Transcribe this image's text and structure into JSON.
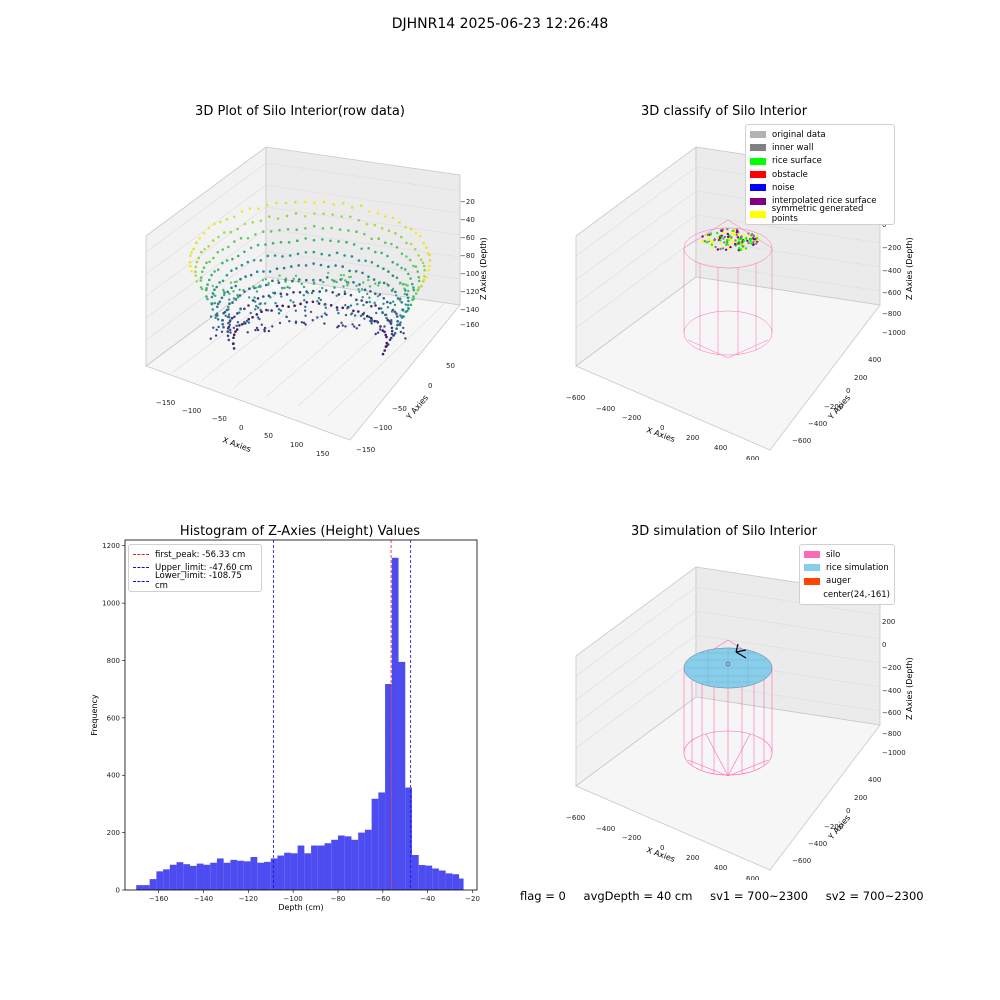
{
  "figure": {
    "suptitle": "DJHNR14 2025-06-23 12:26:48",
    "status": {
      "flag": "flag = 0",
      "avg_depth": "avgDepth = 40 cm",
      "sv1": "sv1 = 700~2300",
      "sv2": "sv2 = 700~2300"
    }
  },
  "chart_data": [
    {
      "type": "scatter",
      "projection": "3d",
      "title": "3D Plot of Silo Interior(row data)",
      "xlabel": "X Axies",
      "ylabel": "Y Axies",
      "zlabel": "Z Axies (Depth)",
      "xticks": [
        "−150",
        "−100",
        "−50",
        "0",
        "50",
        "100",
        "150"
      ],
      "yticks": [
        "−150",
        "−100",
        "−50",
        "0",
        "50"
      ],
      "zticks": [
        "−20",
        "−40",
        "−60",
        "−80",
        "−100",
        "−120",
        "−140",
        "−160"
      ],
      "xlim": [
        -170,
        170
      ],
      "ylim": [
        -170,
        70
      ],
      "zlim": [
        -175,
        -15
      ],
      "colormap": "viridis",
      "grid": true
    },
    {
      "type": "scatter",
      "projection": "3d",
      "title": "3D classify of Silo Interior",
      "xlabel": "X Axies",
      "ylabel": "Y Axies",
      "zlabel": "Z Axies (Depth)",
      "xticks": [
        "−600",
        "−400",
        "−200",
        "0",
        "200",
        "400",
        "600"
      ],
      "yticks": [
        "400",
        "200",
        "0",
        "−200",
        "−400",
        "−600"
      ],
      "zticks": [
        "200",
        "0",
        "−200",
        "−400",
        "−600",
        "−800",
        "−1000"
      ],
      "legend_position": "upper right",
      "legend": [
        {
          "label": "original data",
          "color": "#b3b3b3"
        },
        {
          "label": "inner wall",
          "color": "#808080"
        },
        {
          "label": "rice surface",
          "color": "#00ff00"
        },
        {
          "label": "obstacle",
          "color": "#ff0000"
        },
        {
          "label": "noise",
          "color": "#0000ff"
        },
        {
          "label": "interpolated rice surface",
          "color": "#800080"
        },
        {
          "label": "symmetric generated points",
          "color": "#ffff00"
        }
      ],
      "grid": true
    },
    {
      "type": "bar",
      "title": "Histogram of Z-Axies (Height) Values",
      "xlabel": "Depth (cm)",
      "ylabel": "Frequency",
      "xlim": [
        -175,
        -18
      ],
      "ylim": [
        0,
        1220
      ],
      "xticks": [
        -160,
        -140,
        -120,
        -100,
        -80,
        -60,
        -40,
        -20
      ],
      "yticks": [
        0,
        200,
        400,
        600,
        800,
        1000,
        1200
      ],
      "bar_color": "#4c4cf0",
      "bins": [
        [
          -170,
          -167,
          17
        ],
        [
          -167,
          -164,
          17
        ],
        [
          -164,
          -161,
          38
        ],
        [
          -161,
          -158,
          65
        ],
        [
          -158,
          -155,
          72
        ],
        [
          -155,
          -152,
          88
        ],
        [
          -152,
          -149,
          97
        ],
        [
          -149,
          -146,
          90
        ],
        [
          -146,
          -143,
          84
        ],
        [
          -143,
          -140,
          92
        ],
        [
          -140,
          -137,
          88
        ],
        [
          -137,
          -134,
          95
        ],
        [
          -134,
          -131,
          110
        ],
        [
          -131,
          -128,
          95
        ],
        [
          -128,
          -125,
          105
        ],
        [
          -125,
          -122,
          102
        ],
        [
          -122,
          -119,
          100
        ],
        [
          -119,
          -116,
          115
        ],
        [
          -116,
          -113,
          95
        ],
        [
          -113,
          -110,
          98
        ],
        [
          -110,
          -107,
          110
        ],
        [
          -107,
          -104,
          120
        ],
        [
          -104,
          -101,
          130
        ],
        [
          -101,
          -98,
          128
        ],
        [
          -98,
          -95,
          155
        ],
        [
          -95,
          -92,
          128
        ],
        [
          -92,
          -89,
          155
        ],
        [
          -89,
          -86,
          155
        ],
        [
          -86,
          -83,
          163
        ],
        [
          -83,
          -80,
          175
        ],
        [
          -80,
          -77,
          190
        ],
        [
          -77,
          -74,
          187
        ],
        [
          -74,
          -71,
          175
        ],
        [
          -71,
          -68,
          200
        ],
        [
          -68,
          -65,
          210
        ],
        [
          -65,
          -62,
          318
        ],
        [
          -62,
          -59,
          340
        ],
        [
          -59,
          -56,
          718
        ],
        [
          -56,
          -53,
          1158
        ],
        [
          -53,
          -50,
          795
        ],
        [
          -50,
          -47,
          357
        ],
        [
          -47,
          -44,
          122
        ],
        [
          -44,
          -41,
          87
        ],
        [
          -41,
          -38,
          85
        ],
        [
          -38,
          -35,
          75
        ],
        [
          -35,
          -32,
          68
        ],
        [
          -32,
          -29,
          58
        ],
        [
          -29,
          -26,
          55
        ],
        [
          -26,
          -24,
          40
        ]
      ],
      "vlines": [
        {
          "x": -56.33,
          "color": "#e02020",
          "label": "first_peak: -56.33 cm"
        },
        {
          "x": -47.6,
          "color": "#1010e0",
          "label": "Upper_limit: -47.60 cm"
        },
        {
          "x": -108.75,
          "color": "#1010e0",
          "label": "Lower_limit: -108.75 cm"
        }
      ],
      "legend_position": "upper left"
    },
    {
      "type": "scatter",
      "projection": "3d",
      "title": "3D simulation of Silo Interior",
      "xlabel": "X Axies",
      "ylabel": "Y Axies",
      "zlabel": "Z Axies (Depth)",
      "xticks": [
        "−600",
        "−400",
        "−200",
        "0",
        "200",
        "400",
        "600"
      ],
      "yticks": [
        "400",
        "200",
        "0",
        "−200",
        "−400",
        "−600"
      ],
      "zticks": [
        "200",
        "0",
        "−200",
        "−400",
        "−600",
        "−800",
        "−1000"
      ],
      "legend_position": "upper right",
      "legend": [
        {
          "label": "silo",
          "color": "#ff69b4"
        },
        {
          "label": "rice simulation",
          "color": "#87ceeb"
        },
        {
          "label": "auger",
          "color": "#ff4500"
        },
        {
          "label": "center(24,-161)",
          "color": ""
        }
      ],
      "grid": true
    }
  ]
}
